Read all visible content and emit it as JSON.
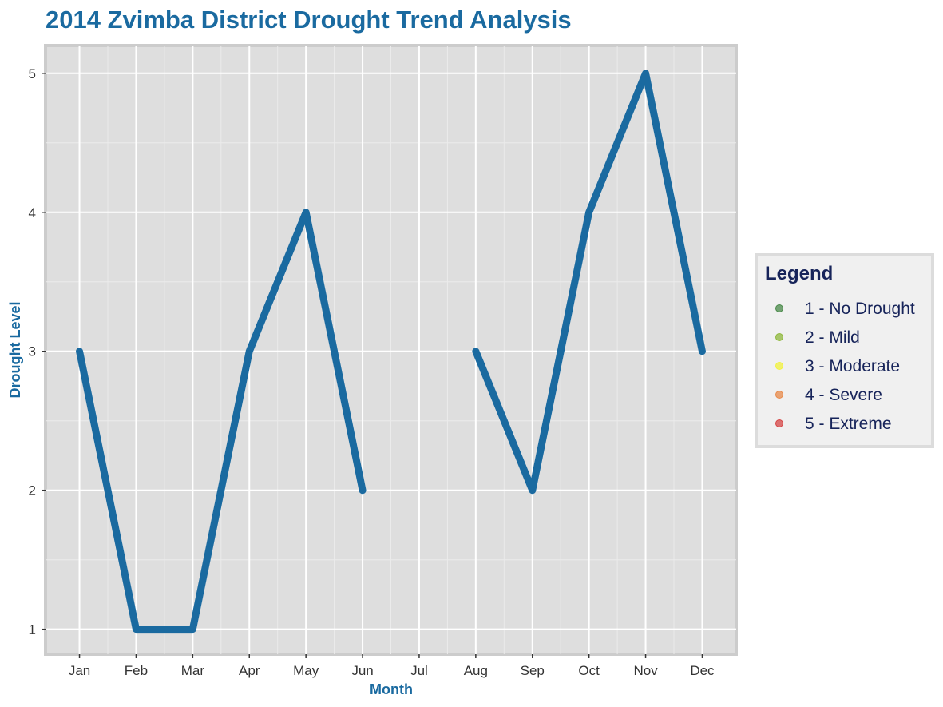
{
  "chart_data": {
    "type": "line",
    "title": "2014 Zvimba District Drought Trend Analysis",
    "xlabel": "Month",
    "ylabel": "Drought Level",
    "categories": [
      "Jan",
      "Feb",
      "Mar",
      "Apr",
      "May",
      "Jun",
      "Jul",
      "Aug",
      "Sep",
      "Oct",
      "Nov",
      "Dec"
    ],
    "series": [
      {
        "values": [
          3,
          1,
          1,
          3,
          4,
          2,
          null,
          3,
          2,
          4,
          5,
          3
        ]
      }
    ],
    "ylim": [
      0.82,
      5.2
    ],
    "yticks": [
      1,
      2,
      3,
      4,
      5
    ],
    "grid": true,
    "line_color": "#1a6aa0",
    "legend": {
      "title": "Legend",
      "position": "right",
      "items": [
        {
          "label": "1 - No Drought",
          "color": "#4a8a4a"
        },
        {
          "label": "2 - Mild",
          "color": "#8fb83c"
        },
        {
          "label": "3 - Moderate",
          "color": "#f2f23c"
        },
        {
          "label": "4 - Severe",
          "color": "#e88a4a"
        },
        {
          "label": "5 - Extreme",
          "color": "#d64545"
        }
      ]
    }
  }
}
